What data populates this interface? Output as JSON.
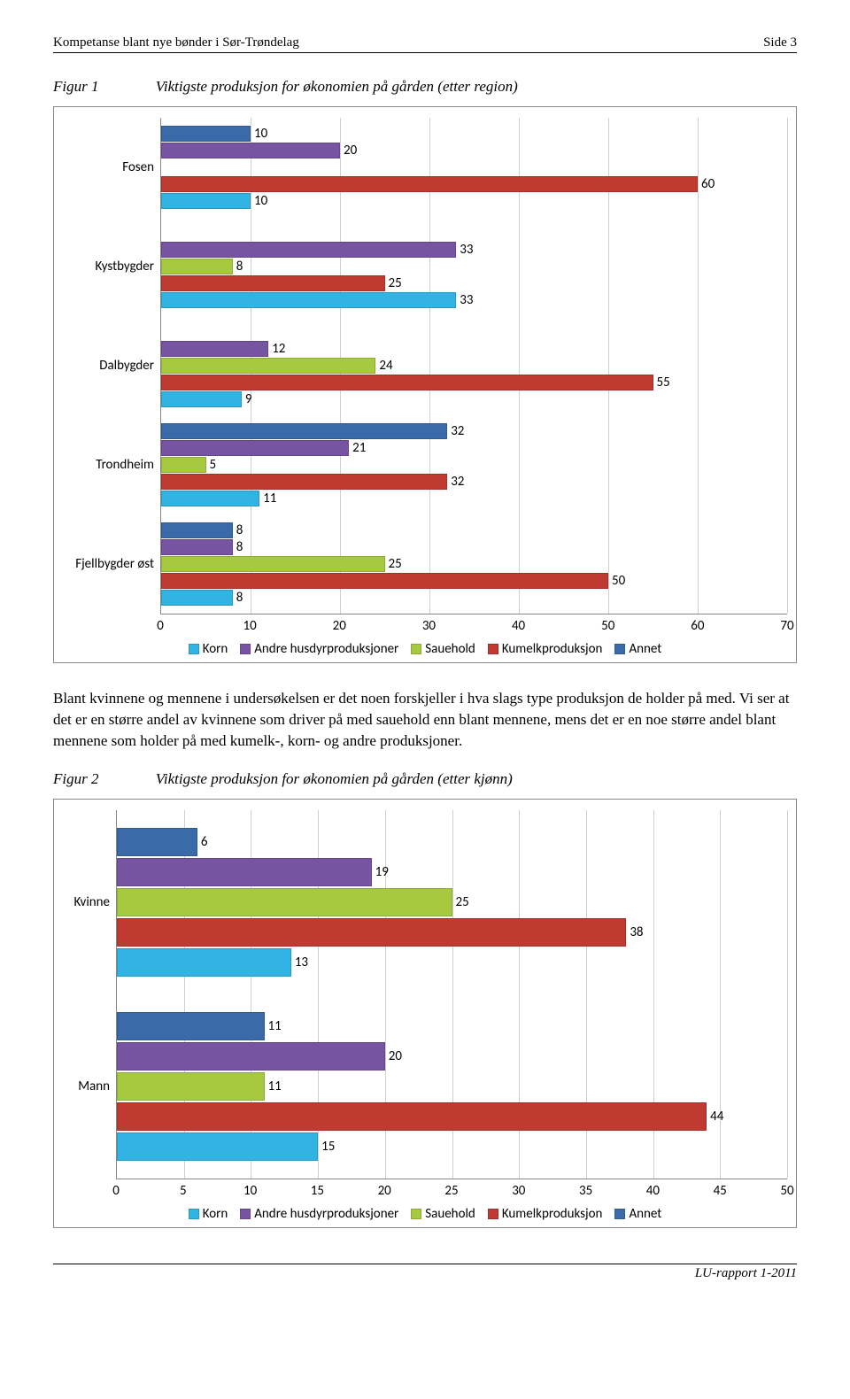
{
  "header": {
    "left": "Kompetanse blant nye bønder i Sør-Trøndelag",
    "right": "Side 3"
  },
  "figure1": {
    "label": "Figur 1",
    "title": "Viktigste produksjon for økonomien på gården (etter region)",
    "type": "bar",
    "xlim": [
      0,
      70
    ],
    "xtick_step": 10,
    "grid_color": "#d0d0d0",
    "background_color": "#ffffff",
    "series_order": [
      "Annet",
      "Andre husdyrproduksjoner",
      "Sauehold",
      "Kumelkproduksjon",
      "Korn"
    ],
    "series_colors": {
      "Korn": "#31b4e4",
      "Andre husdyrproduksjoner": "#7754a1",
      "Sauehold": "#a7c940",
      "Kumelkproduksjon": "#bf3b31",
      "Annet": "#3a6aa8"
    },
    "categories": [
      {
        "name": "Fosen",
        "values": {
          "Annet": 10,
          "Andre husdyrproduksjoner": 20,
          "Sauehold": null,
          "Kumelkproduksjon": 60,
          "Korn": 10
        }
      },
      {
        "name": "Kystbygder",
        "values": {
          "Annet": null,
          "Andre husdyrproduksjoner": 33,
          "Sauehold": 8,
          "Kumelkproduksjon": 25,
          "Korn": 33
        }
      },
      {
        "name": "Dalbygder",
        "values": {
          "Annet": null,
          "Andre husdyrproduksjoner": 12,
          "Sauehold": 24,
          "Kumelkproduksjon": 55,
          "Korn": 9
        }
      },
      {
        "name": "Trondheim",
        "values": {
          "Annet": 32,
          "Andre husdyrproduksjoner": 21,
          "Sauehold": 5,
          "Kumelkproduksjon": 32,
          "Korn": 11
        }
      },
      {
        "name": "Fjellbygder øst",
        "values": {
          "Annet": 8,
          "Andre husdyrproduksjoner": 8,
          "Sauehold": 25,
          "Kumelkproduksjon": 50,
          "Korn": 8
        }
      }
    ],
    "legend_order": [
      "Korn",
      "Andre husdyrproduksjoner",
      "Sauehold",
      "Kumelkproduksjon",
      "Annet"
    ]
  },
  "body_text": "Blant kvinnene og mennene i undersøkelsen er det noen forskjeller i hva slags type produksjon de holder på med. Vi ser at det er en større andel av kvinnene som driver på med sauehold enn blant mennene, mens det er en noe større andel blant mennene som holder på med kumelk-, korn- og andre produksjoner.",
  "figure2": {
    "label": "Figur 2",
    "title": "Viktigste produksjon for økonomien på gården (etter kjønn)",
    "type": "bar",
    "xlim": [
      0,
      50
    ],
    "xtick_step": 5,
    "grid_color": "#d0d0d0",
    "background_color": "#ffffff",
    "series_order": [
      "Annet",
      "Andre husdyrproduksjoner",
      "Sauehold",
      "Kumelkproduksjon",
      "Korn"
    ],
    "series_colors": {
      "Korn": "#31b4e4",
      "Andre husdyrproduksjoner": "#7754a1",
      "Sauehold": "#a7c940",
      "Kumelkproduksjon": "#bf3b31",
      "Annet": "#3a6aa8"
    },
    "categories": [
      {
        "name": "Kvinne",
        "values": {
          "Annet": 6,
          "Andre husdyrproduksjoner": 19,
          "Sauehold": 25,
          "Kumelkproduksjon": 38,
          "Korn": 13
        }
      },
      {
        "name": "Mann",
        "values": {
          "Annet": 11,
          "Andre husdyrproduksjoner": 20,
          "Sauehold": 11,
          "Kumelkproduksjon": 44,
          "Korn": 15
        }
      }
    ],
    "legend_order": [
      "Korn",
      "Andre husdyrproduksjoner",
      "Sauehold",
      "Kumelkproduksjon",
      "Annet"
    ]
  },
  "footer": {
    "text": "LU-rapport 1-2011"
  }
}
